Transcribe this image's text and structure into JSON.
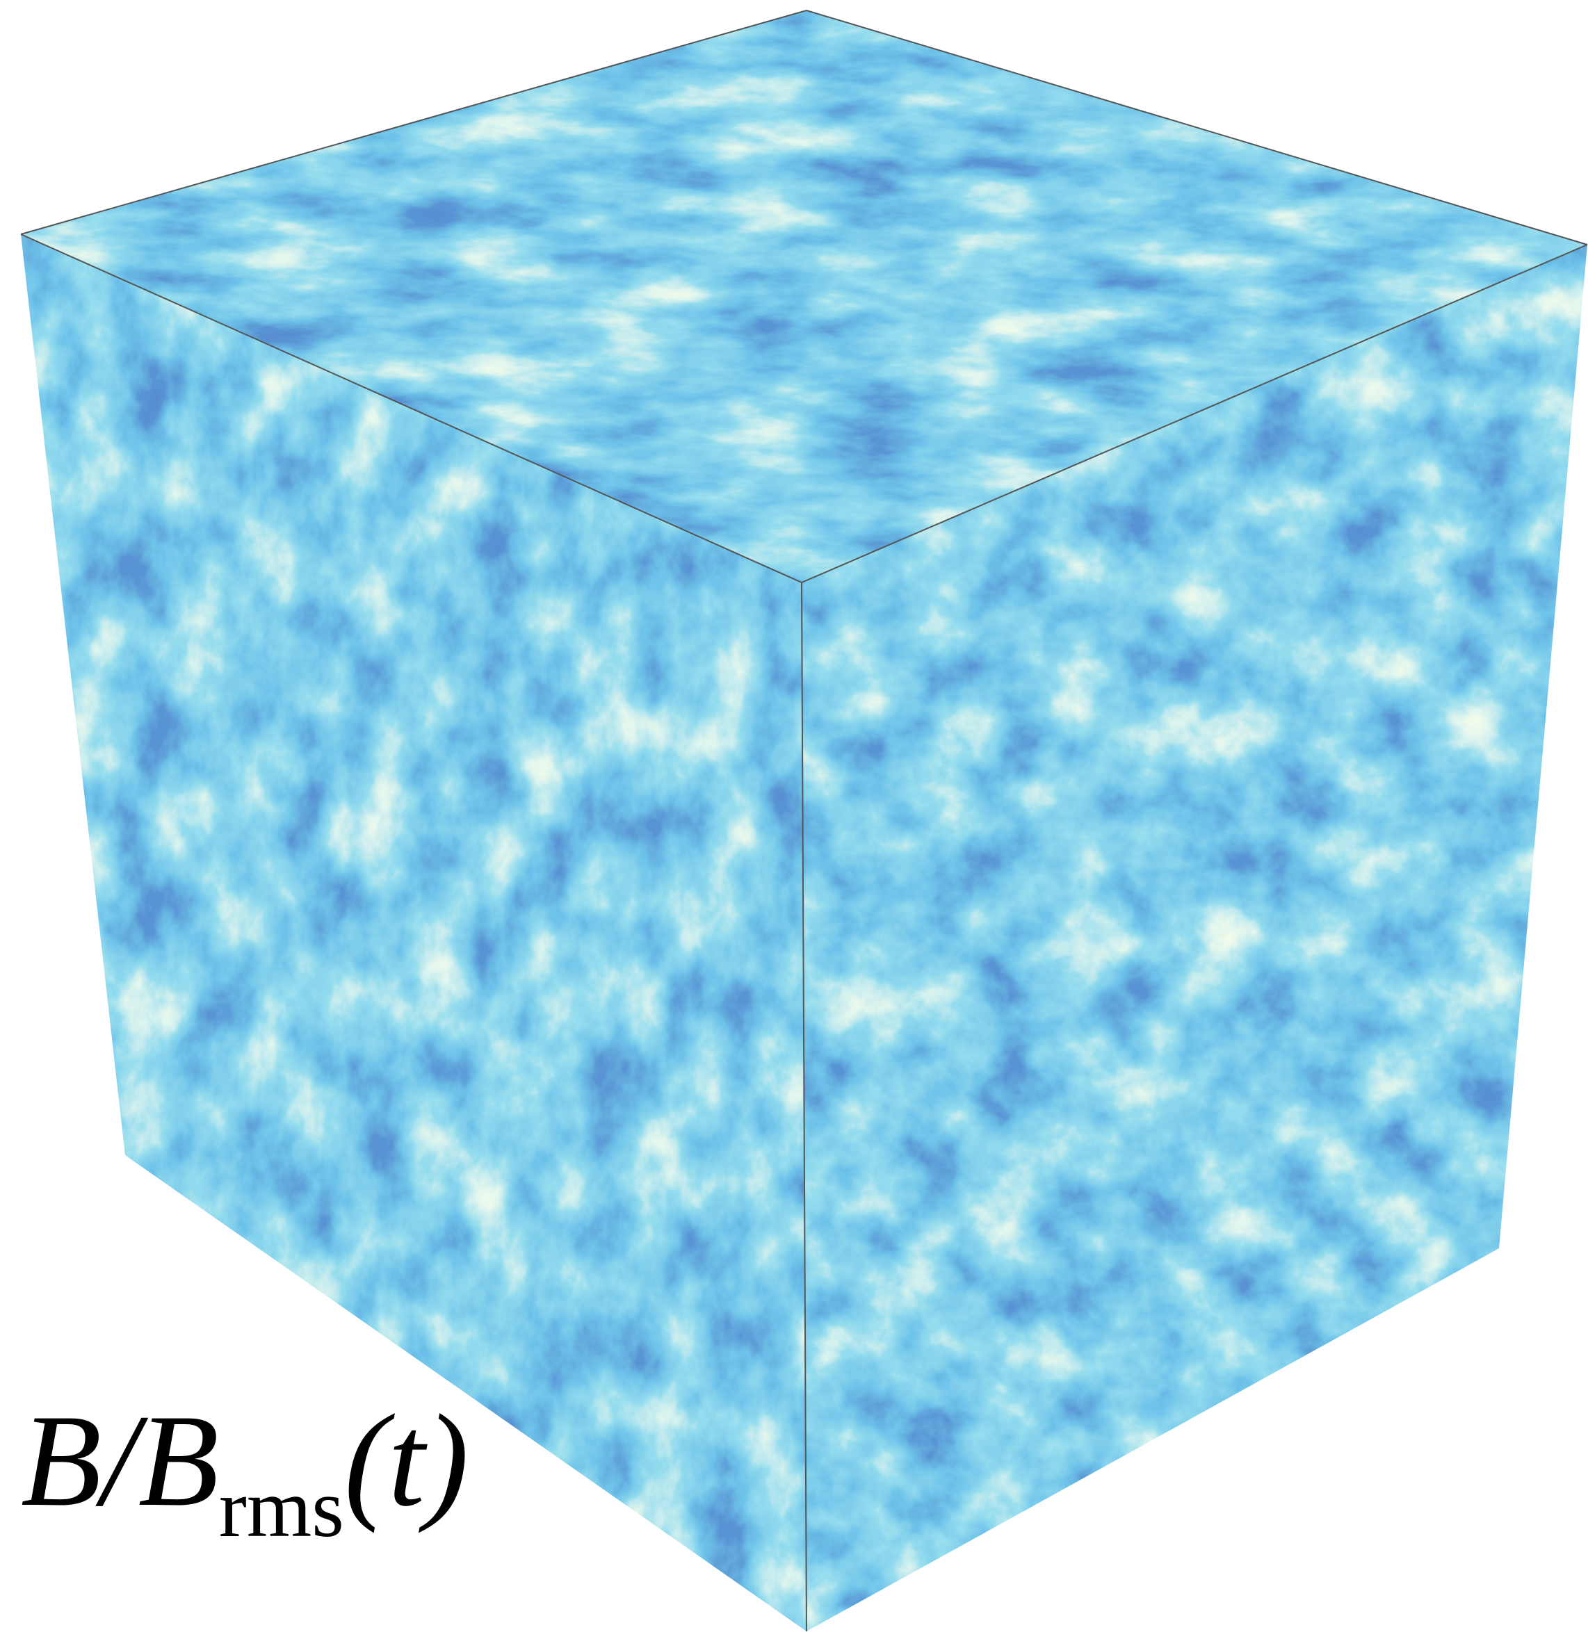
{
  "label": {
    "main": "B/B",
    "subscript": "rms",
    "suffix": "(t)"
  }
}
